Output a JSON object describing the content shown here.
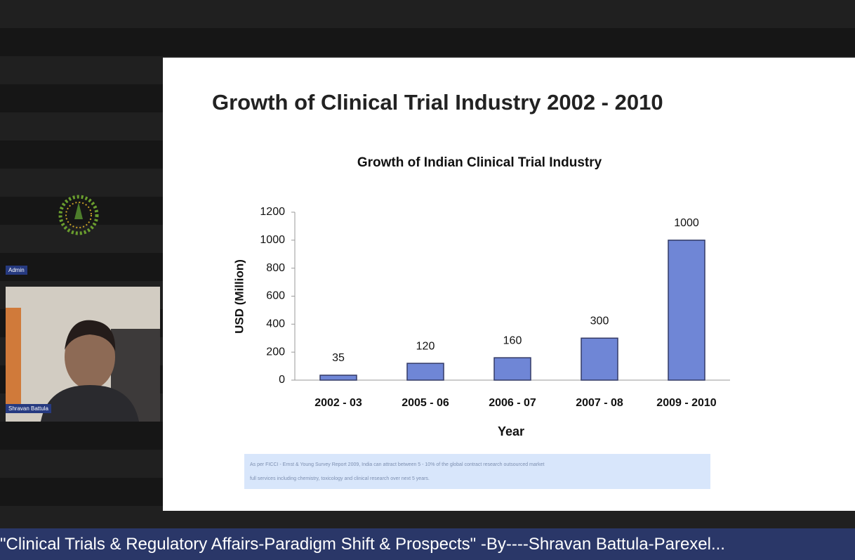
{
  "slide_title": "Growth of Clinical Trial Industry 2002 - 2010",
  "chart_data": {
    "type": "bar",
    "title": "Growth of Indian Clinical Trial Industry",
    "y_label": "USD (Million)",
    "x_label": "Year",
    "categories": [
      "2002 - 03",
      "2005 - 06",
      "2006 - 07",
      "2007 - 08",
      "2009 - 2010"
    ],
    "values": [
      35,
      120,
      160,
      300,
      1000
    ],
    "color": "#6f86d6",
    "ylim": [
      0,
      1200
    ],
    "yticks": [
      0,
      200,
      400,
      600,
      800,
      1000,
      1200
    ],
    "grid": false
  },
  "footnote": [
    "As per FICCI - Ernst & Young Survey Report 2009, India can attract between 5 - 10% of the global contract research outsourced market",
    "full services including chemistry, toxicology and clinical research over next 5 years."
  ],
  "participants": [
    "Admin",
    "Shravan Battula"
  ],
  "banner": "\"Clinical Trials & Regulatory Affairs-Paradigm Shift & Prospects\" -By----Shravan Battula-Parexel..."
}
